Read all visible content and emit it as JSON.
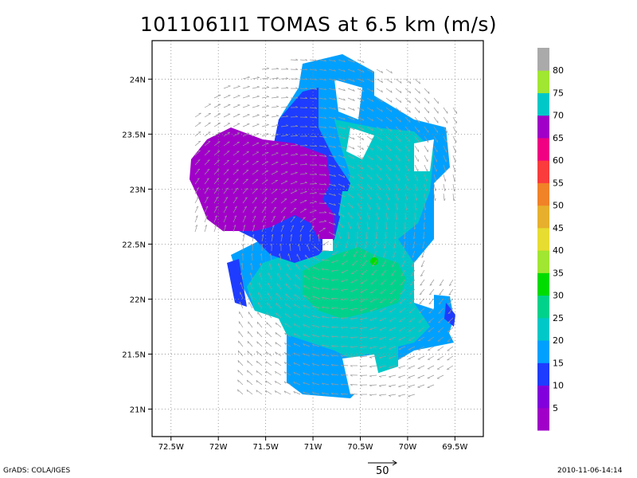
{
  "title": "1011061I1 TOMAS at 6.5 km (m/s)",
  "map": {
    "x_ticks": [
      "72.5W",
      "72W",
      "71.5W",
      "71W",
      "70.5W",
      "70W",
      "69.5W"
    ],
    "y_ticks": [
      "24N",
      "23.5N",
      "23N",
      "22.5N",
      "22N",
      "21.5N",
      "21N"
    ],
    "lon_range": [
      -72.7,
      -69.2
    ],
    "lat_range": [
      20.75,
      24.35
    ],
    "grid": true
  },
  "colorbar": {
    "labels": [
      "5",
      "10",
      "15",
      "20",
      "25",
      "30",
      "35",
      "40",
      "45",
      "50",
      "55",
      "60",
      "65",
      "70",
      "75",
      "80"
    ],
    "colors": [
      "#a000c8",
      "#8200dc",
      "#1e3cff",
      "#00a0ff",
      "#00c8c8",
      "#00d28c",
      "#00dc00",
      "#a0e632",
      "#e6dc32",
      "#e6af2d",
      "#f08228",
      "#fa3c3c",
      "#f00082",
      "#a000c8",
      "#00c8c8",
      "#a0e632",
      "#aaaaaa"
    ]
  },
  "reference_vector": {
    "label": "50"
  },
  "footer": {
    "left": "GrADS: COLA/IGES",
    "right": "2010-11-06-14:14"
  }
}
